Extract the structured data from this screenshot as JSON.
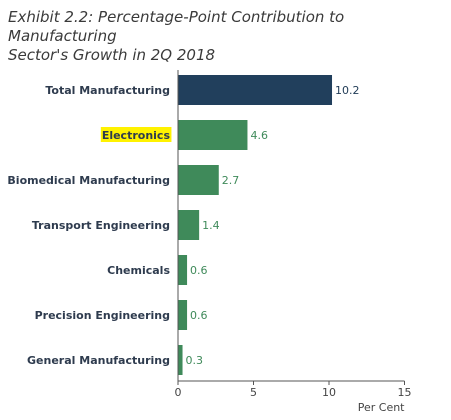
{
  "chart_data": {
    "type": "bar",
    "orientation": "horizontal",
    "title": "Exhibit 2.2: Percentage-Point Contribution to Manufacturing Sector's Growth in 2Q 2018",
    "title_lines": [
      "Exhibit 2.2: Percentage-Point Contribution to Manufacturing",
      "Sector's Growth in 2Q 2018"
    ],
    "categories": [
      "Total Manufacturing",
      "Electronics",
      "Biomedical Manufacturing",
      "Transport Engineering",
      "Chemicals",
      "Precision Engineering",
      "General Manufacturing"
    ],
    "values": [
      10.2,
      4.6,
      2.7,
      1.4,
      0.6,
      0.6,
      0.3
    ],
    "value_labels": [
      "10.2",
      "4.6",
      "2.7",
      "1.4",
      "0.6",
      "0.6",
      "0.3"
    ],
    "highlighted_category": "Electronics",
    "xlim": [
      0,
      15
    ],
    "xticks": [
      0,
      5,
      10,
      15
    ],
    "xlabel": "Per Cent",
    "ylabel": "",
    "grid": false,
    "colors": {
      "total_bar": "#213f5c",
      "sector_bar": "#3f8a5a",
      "highlight": "#fff200",
      "total_value_text": "#1f3a55",
      "sector_value_text": "#3f8a5a"
    }
  }
}
